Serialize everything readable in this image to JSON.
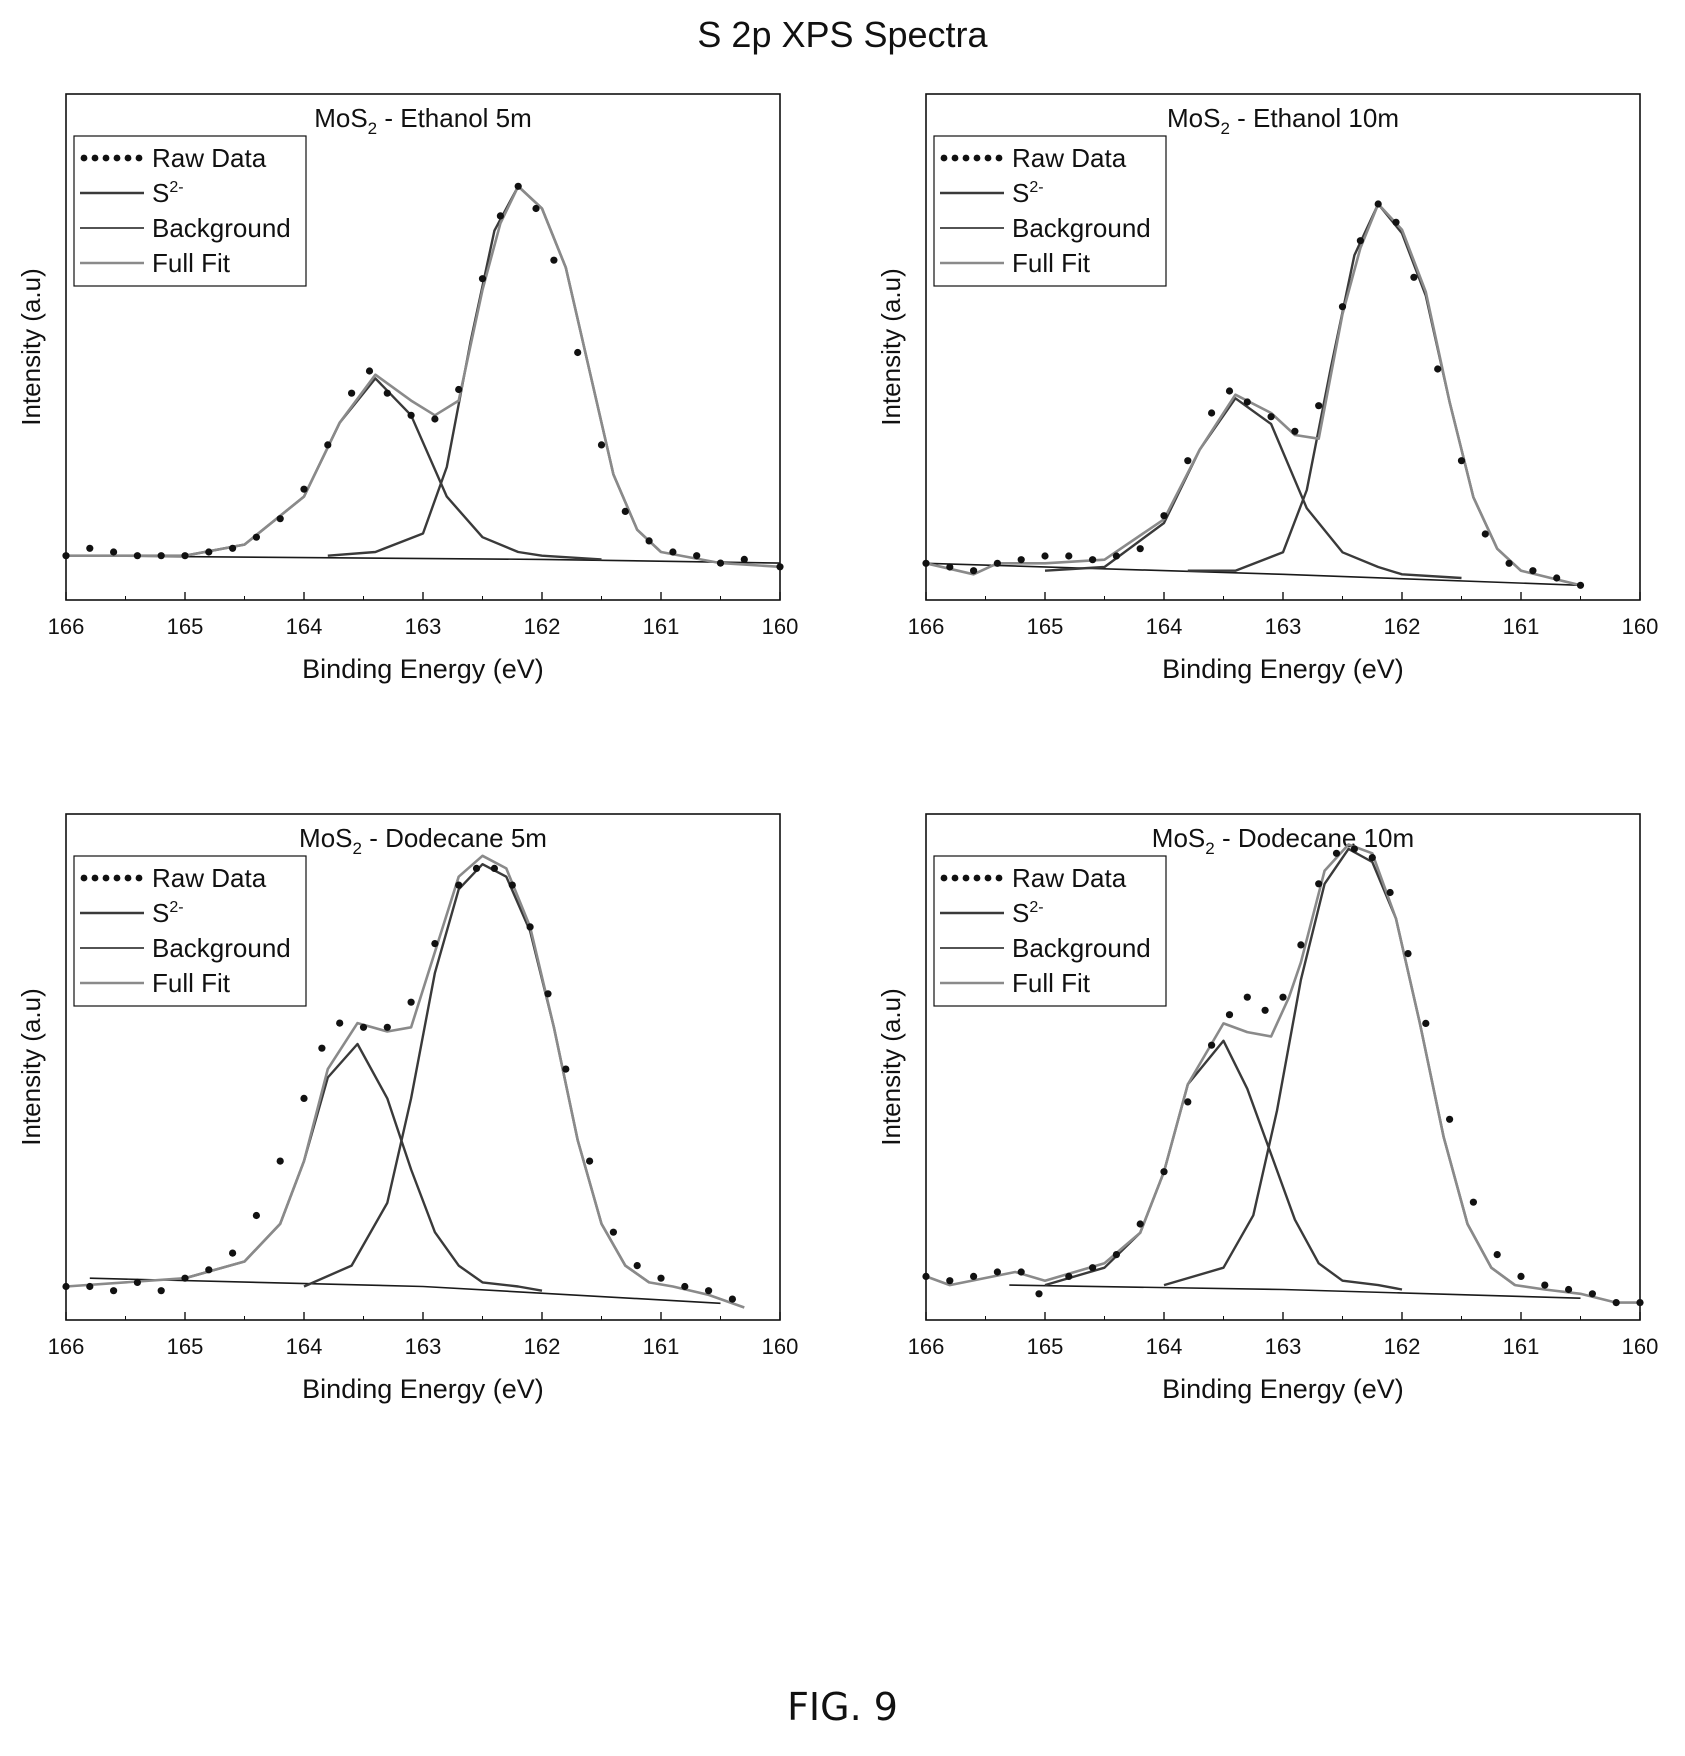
{
  "figure": {
    "title": "S 2p XPS Spectra",
    "caption": "FIG. 9"
  },
  "colors": {
    "raw": "#111111",
    "component": "#3a3a3a",
    "background": "#1a1a1a",
    "fullfit": "#8a8a8a"
  },
  "chart_data": [
    {
      "type": "line",
      "title_main": "MoS",
      "title_sub": "2",
      "title_rest": " - Ethanol 5m",
      "xlabel": "Binding Energy (eV)",
      "ylabel": "Intensity (a.u)",
      "xlim": [
        166,
        160
      ],
      "ylim": [
        -0.12,
        1.25
      ],
      "x_reversed": true,
      "xticks": [
        166,
        165,
        164,
        163,
        162,
        161,
        160
      ],
      "y_tick_labels": false,
      "grid": false,
      "legend_position": "top-left",
      "legend": [
        "Raw Data",
        "S2-",
        "Background",
        "Full Fit"
      ],
      "series": [
        {
          "name": "Raw Data",
          "style": "dots",
          "x": [
            166.0,
            165.8,
            165.6,
            165.4,
            165.2,
            165.0,
            164.8,
            164.6,
            164.4,
            164.2,
            164.0,
            163.8,
            163.6,
            163.45,
            163.3,
            163.1,
            162.9,
            162.7,
            162.5,
            162.35,
            162.2,
            162.05,
            161.9,
            161.7,
            161.5,
            161.3,
            161.1,
            160.9,
            160.7,
            160.5,
            160.3,
            160.0
          ],
          "y": [
            0.0,
            0.02,
            0.01,
            0.0,
            0.0,
            0.0,
            0.01,
            0.02,
            0.05,
            0.1,
            0.18,
            0.3,
            0.44,
            0.5,
            0.44,
            0.38,
            0.37,
            0.45,
            0.75,
            0.92,
            1.0,
            0.94,
            0.8,
            0.55,
            0.3,
            0.12,
            0.04,
            0.01,
            0.0,
            -0.02,
            -0.01,
            -0.03
          ]
        },
        {
          "name": "S2-",
          "style": "solid",
          "part": "peak1",
          "x": [
            165.0,
            164.5,
            164.0,
            163.7,
            163.4,
            163.1,
            162.8,
            162.5,
            162.2,
            162.0,
            161.5
          ],
          "y": [
            0.0,
            0.03,
            0.16,
            0.36,
            0.48,
            0.38,
            0.16,
            0.05,
            0.01,
            0.0,
            -0.01
          ]
        },
        {
          "name": "S2-",
          "style": "solid",
          "part": "peak2",
          "x": [
            163.8,
            163.4,
            163.0,
            162.8,
            162.6,
            162.4,
            162.2,
            162.0,
            161.8,
            161.6,
            161.4,
            161.2,
            161.0
          ],
          "y": [
            0.0,
            0.01,
            0.06,
            0.24,
            0.58,
            0.88,
            1.0,
            0.94,
            0.78,
            0.5,
            0.22,
            0.07,
            0.01
          ]
        },
        {
          "name": "Background",
          "style": "solid",
          "x": [
            166.0,
            162.0,
            160.0
          ],
          "y": [
            0.0,
            -0.01,
            -0.02
          ]
        },
        {
          "name": "Full Fit",
          "style": "solid",
          "x": [
            166.0,
            165.0,
            164.5,
            164.0,
            163.7,
            163.4,
            163.1,
            162.9,
            162.7,
            162.5,
            162.35,
            162.2,
            162.0,
            161.8,
            161.6,
            161.4,
            161.2,
            161.0,
            160.5,
            160.0
          ],
          "y": [
            0.0,
            0.0,
            0.03,
            0.16,
            0.36,
            0.49,
            0.42,
            0.38,
            0.42,
            0.72,
            0.9,
            1.0,
            0.94,
            0.78,
            0.5,
            0.22,
            0.07,
            0.01,
            -0.02,
            -0.03
          ]
        }
      ]
    },
    {
      "type": "line",
      "title_main": "MoS",
      "title_sub": "2",
      "title_rest": " - Ethanol 10m",
      "xlabel": "Binding Energy (eV)",
      "ylabel": "Intensity (a.u)",
      "xlim": [
        166,
        160
      ],
      "ylim": [
        -0.08,
        1.3
      ],
      "x_reversed": true,
      "xticks": [
        166,
        165,
        164,
        163,
        162,
        161,
        160
      ],
      "y_tick_labels": false,
      "grid": false,
      "legend_position": "top-left",
      "legend": [
        "Raw Data",
        "S2-",
        "Background",
        "Full Fit"
      ],
      "series": [
        {
          "name": "Raw Data",
          "style": "dots",
          "x": [
            166.0,
            165.8,
            165.6,
            165.4,
            165.2,
            165.0,
            164.8,
            164.6,
            164.4,
            164.2,
            164.0,
            163.8,
            163.6,
            163.45,
            163.3,
            163.1,
            162.9,
            162.7,
            162.5,
            162.35,
            162.2,
            162.05,
            161.9,
            161.7,
            161.5,
            161.3,
            161.1,
            160.9,
            160.7,
            160.5
          ],
          "y": [
            0.02,
            0.01,
            0.0,
            0.02,
            0.03,
            0.04,
            0.04,
            0.03,
            0.04,
            0.06,
            0.15,
            0.3,
            0.43,
            0.49,
            0.46,
            0.42,
            0.38,
            0.45,
            0.72,
            0.9,
            1.0,
            0.95,
            0.8,
            0.55,
            0.3,
            0.1,
            0.02,
            0.0,
            -0.02,
            -0.04
          ]
        },
        {
          "name": "S2-",
          "style": "solid",
          "part": "peak1",
          "x": [
            165.0,
            164.5,
            164.0,
            163.7,
            163.4,
            163.1,
            162.8,
            162.5,
            162.2,
            162.0,
            161.5
          ],
          "y": [
            0.0,
            0.01,
            0.13,
            0.33,
            0.47,
            0.4,
            0.17,
            0.05,
            0.01,
            -0.01,
            -0.02
          ]
        },
        {
          "name": "S2-",
          "style": "solid",
          "part": "peak2",
          "x": [
            163.8,
            163.4,
            163.0,
            162.8,
            162.6,
            162.4,
            162.2,
            162.0,
            161.8,
            161.6,
            161.4,
            161.2,
            161.0
          ],
          "y": [
            0.0,
            0.0,
            0.05,
            0.22,
            0.55,
            0.86,
            1.0,
            0.92,
            0.75,
            0.46,
            0.2,
            0.06,
            0.0
          ]
        },
        {
          "name": "Background",
          "style": "solid",
          "x": [
            166.0,
            163.0,
            160.5
          ],
          "y": [
            0.02,
            -0.01,
            -0.04
          ]
        },
        {
          "name": "Full Fit",
          "style": "solid",
          "x": [
            166.0,
            165.6,
            165.4,
            165.0,
            164.5,
            164.0,
            163.7,
            163.4,
            163.1,
            162.9,
            162.7,
            162.5,
            162.35,
            162.2,
            162.0,
            161.8,
            161.6,
            161.4,
            161.2,
            161.0,
            160.5
          ],
          "y": [
            0.02,
            -0.01,
            0.02,
            0.02,
            0.03,
            0.14,
            0.33,
            0.48,
            0.43,
            0.37,
            0.36,
            0.7,
            0.88,
            1.0,
            0.93,
            0.76,
            0.46,
            0.2,
            0.06,
            0.0,
            -0.04
          ]
        }
      ]
    },
    {
      "type": "line",
      "title_main": "MoS",
      "title_sub": "2",
      "title_rest": " - Dodecane 5m",
      "xlabel": "Binding Energy (eV)",
      "ylabel": "Intensity (a.u)",
      "xlim": [
        166,
        160
      ],
      "ylim": [
        -0.08,
        1.13
      ],
      "x_reversed": true,
      "xticks": [
        166,
        165,
        164,
        163,
        162,
        161,
        160
      ],
      "y_tick_labels": false,
      "grid": false,
      "legend_position": "top-left",
      "legend": [
        "Raw Data",
        "S2-",
        "Background",
        "Full Fit"
      ],
      "series": [
        {
          "name": "Raw Data",
          "style": "dots",
          "x": [
            166.0,
            165.8,
            165.6,
            165.4,
            165.2,
            165.0,
            164.8,
            164.6,
            164.4,
            164.2,
            164.0,
            163.85,
            163.7,
            163.5,
            163.3,
            163.1,
            162.9,
            162.7,
            162.55,
            162.4,
            162.25,
            162.1,
            161.95,
            161.8,
            161.6,
            161.4,
            161.2,
            161.0,
            160.8,
            160.6,
            160.4
          ],
          "y": [
            0.0,
            0.0,
            -0.01,
            0.01,
            -0.01,
            0.02,
            0.04,
            0.08,
            0.17,
            0.3,
            0.45,
            0.57,
            0.63,
            0.62,
            0.62,
            0.68,
            0.82,
            0.96,
            1.0,
            1.0,
            0.96,
            0.86,
            0.7,
            0.52,
            0.3,
            0.13,
            0.05,
            0.02,
            0.0,
            -0.01,
            -0.03
          ]
        },
        {
          "name": "S2-",
          "style": "solid",
          "part": "peak1",
          "x": [
            165.0,
            164.5,
            164.2,
            164.0,
            163.8,
            163.55,
            163.3,
            163.1,
            162.9,
            162.7,
            162.5,
            162.2,
            162.0
          ],
          "y": [
            0.02,
            0.06,
            0.15,
            0.3,
            0.5,
            0.58,
            0.45,
            0.28,
            0.13,
            0.05,
            0.01,
            0.0,
            -0.01
          ]
        },
        {
          "name": "S2-",
          "style": "solid",
          "part": "peak2",
          "x": [
            164.0,
            163.6,
            163.3,
            163.1,
            162.9,
            162.7,
            162.5,
            162.3,
            162.1,
            161.9,
            161.7,
            161.5,
            161.3,
            161.1
          ],
          "y": [
            0.0,
            0.05,
            0.2,
            0.45,
            0.75,
            0.95,
            1.01,
            0.98,
            0.85,
            0.62,
            0.35,
            0.15,
            0.05,
            0.01
          ]
        },
        {
          "name": "Background",
          "style": "solid",
          "x": [
            165.8,
            163.0,
            160.5
          ],
          "y": [
            0.02,
            0.0,
            -0.04
          ]
        },
        {
          "name": "Full Fit",
          "style": "solid",
          "x": [
            166.0,
            165.0,
            164.5,
            164.2,
            164.0,
            163.8,
            163.55,
            163.3,
            163.1,
            162.9,
            162.7,
            162.5,
            162.3,
            162.1,
            161.9,
            161.7,
            161.5,
            161.3,
            161.1,
            160.9,
            160.6,
            160.3
          ],
          "y": [
            0.0,
            0.02,
            0.06,
            0.15,
            0.3,
            0.52,
            0.63,
            0.61,
            0.62,
            0.8,
            0.98,
            1.03,
            1.0,
            0.86,
            0.62,
            0.35,
            0.15,
            0.05,
            0.01,
            0.0,
            -0.02,
            -0.05
          ]
        }
      ]
    },
    {
      "type": "line",
      "title_main": "MoS",
      "title_sub": "2",
      "title_rest": " - Dodecane 10m",
      "xlabel": "Binding Energy (eV)",
      "ylabel": "Intensity (a.u)",
      "xlim": [
        166,
        160
      ],
      "ylim": [
        -0.08,
        1.08
      ],
      "x_reversed": true,
      "xticks": [
        166,
        165,
        164,
        163,
        162,
        161,
        160
      ],
      "y_tick_labels": false,
      "grid": false,
      "legend_position": "top-left",
      "legend": [
        "Raw Data",
        "S2-",
        "Background",
        "Full Fit"
      ],
      "series": [
        {
          "name": "Raw Data",
          "style": "dots",
          "x": [
            166.0,
            165.8,
            165.6,
            165.4,
            165.2,
            165.05,
            164.8,
            164.6,
            164.4,
            164.2,
            164.0,
            163.8,
            163.6,
            163.45,
            163.3,
            163.15,
            163.0,
            162.85,
            162.7,
            162.55,
            162.4,
            162.25,
            162.1,
            161.95,
            161.8,
            161.6,
            161.4,
            161.2,
            161.0,
            160.8,
            160.6,
            160.4,
            160.2,
            160.0
          ],
          "y": [
            0.02,
            0.01,
            0.02,
            0.03,
            0.03,
            -0.02,
            0.02,
            0.04,
            0.07,
            0.14,
            0.26,
            0.42,
            0.55,
            0.62,
            0.66,
            0.63,
            0.66,
            0.78,
            0.92,
            0.99,
            1.0,
            0.98,
            0.9,
            0.76,
            0.6,
            0.38,
            0.19,
            0.07,
            0.02,
            0.0,
            -0.01,
            -0.02,
            -0.04,
            -0.04
          ]
        },
        {
          "name": "S2-",
          "style": "solid",
          "part": "peak1",
          "x": [
            165.0,
            164.5,
            164.2,
            164.0,
            163.8,
            163.5,
            163.3,
            163.1,
            162.9,
            162.7,
            162.5,
            162.2,
            162.0
          ],
          "y": [
            0.0,
            0.04,
            0.12,
            0.26,
            0.46,
            0.56,
            0.45,
            0.3,
            0.15,
            0.05,
            0.01,
            0.0,
            -0.01
          ]
        },
        {
          "name": "S2-",
          "style": "solid",
          "part": "peak2",
          "x": [
            164.0,
            163.5,
            163.25,
            163.05,
            162.85,
            162.65,
            162.45,
            162.25,
            162.05,
            161.85,
            161.65,
            161.45,
            161.25,
            161.05
          ],
          "y": [
            0.0,
            0.04,
            0.16,
            0.4,
            0.7,
            0.92,
            1.0,
            0.97,
            0.84,
            0.6,
            0.34,
            0.14,
            0.04,
            0.0
          ]
        },
        {
          "name": "Background",
          "style": "solid",
          "x": [
            165.3,
            163.0,
            160.5
          ],
          "y": [
            0.0,
            -0.01,
            -0.03
          ]
        },
        {
          "name": "Full Fit",
          "style": "solid",
          "x": [
            166.0,
            165.8,
            165.25,
            165.0,
            164.5,
            164.2,
            164.0,
            163.8,
            163.5,
            163.3,
            163.1,
            162.95,
            162.85,
            162.65,
            162.45,
            162.25,
            162.05,
            161.85,
            161.65,
            161.45,
            161.25,
            161.05,
            160.8,
            160.5,
            160.2,
            160.0
          ],
          "y": [
            0.02,
            0.0,
            0.03,
            0.01,
            0.05,
            0.12,
            0.26,
            0.46,
            0.6,
            0.58,
            0.57,
            0.66,
            0.74,
            0.95,
            1.01,
            0.99,
            0.84,
            0.6,
            0.34,
            0.14,
            0.04,
            0.0,
            -0.01,
            -0.02,
            -0.04,
            -0.04
          ]
        }
      ]
    }
  ]
}
